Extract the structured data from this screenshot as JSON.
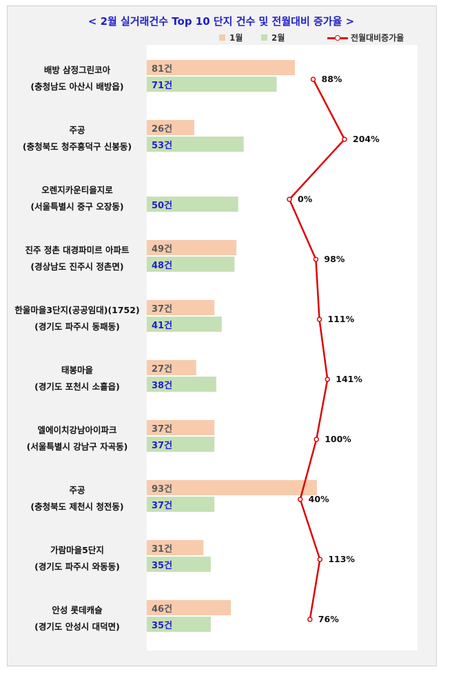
{
  "chart_data": {
    "type": "bar",
    "orientation": "horizontal",
    "title": "< 2월 실거래건수 Top 10 단지 건수 및 전월대비 증가율 >",
    "categories": [
      {
        "name": "배방 삼정그린코아",
        "location": "(충청남도 아산시 배방읍)"
      },
      {
        "name": "주공",
        "location": "(충청북도 청주흥덕구 신봉동)"
      },
      {
        "name": "오렌지카운티을지로",
        "location": "(서울특별시  중구 오장동)"
      },
      {
        "name": "진주 정촌 대경파미르 아파트",
        "location": "(경상남도 진주시 정촌면)"
      },
      {
        "name": "한울마을3단지(공공임대)(1752)",
        "location": "(경기도 파주시 동패동)"
      },
      {
        "name": "태봉마을",
        "location": "(경기도 포천시 소흘읍)"
      },
      {
        "name": "엘에이치강남아이파크",
        "location": "(서울특별시  강남구 자곡동)"
      },
      {
        "name": "주공",
        "location": "(충청북도 제천시 청전동)"
      },
      {
        "name": "가람마을5단지",
        "location": "(경기도 파주시 와동동)"
      },
      {
        "name": "안성 롯데캐슬",
        "location": "(경기도 안성시 대덕면)"
      }
    ],
    "series": [
      {
        "name": "1월",
        "color": "#f8cbad",
        "label_color": "#595959",
        "values": [
          81,
          26,
          null,
          49,
          37,
          27,
          37,
          93,
          31,
          46
        ],
        "labels": [
          "81건",
          "26건",
          "",
          "49건",
          "37건",
          "27건",
          "37건",
          "93건",
          "31건",
          "46건"
        ]
      },
      {
        "name": "2월",
        "color": "#c5e0b4",
        "label_color": "#1f1fc8",
        "values": [
          71,
          53,
          50,
          48,
          41,
          38,
          37,
          37,
          35,
          35
        ],
        "labels": [
          "71건",
          "53건",
          "50건",
          "48건",
          "41건",
          "38건",
          "37건",
          "37건",
          "35건",
          "35건"
        ]
      },
      {
        "name": "전월대비증가율",
        "type": "line",
        "color": "#e00000",
        "values": [
          88,
          204,
          0,
          98,
          111,
          141,
          100,
          40,
          113,
          76
        ],
        "labels": [
          "88%",
          "204%",
          "0%",
          "98%",
          "111%",
          "141%",
          "100%",
          "40%",
          "113%",
          "76%"
        ]
      }
    ],
    "bar_xlim": [
      0,
      90
    ],
    "line_xlim": [
      -70,
      300
    ],
    "grid": false,
    "legend_position": "top"
  }
}
